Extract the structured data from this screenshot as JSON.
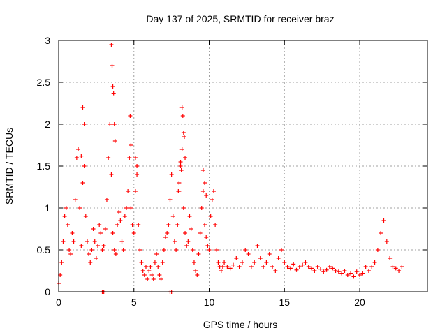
{
  "chart_data": {
    "type": "scatter",
    "title": "Day 137 of 2025, SRMTID for receiver braz",
    "xlabel": "GPS time / hours",
    "ylabel": "SRMTID / TECUs",
    "xlim": [
      0,
      24.5
    ],
    "ylim": [
      0,
      3
    ],
    "xticks": [
      0,
      5,
      10,
      15,
      20
    ],
    "xtick_labels": [
      "0",
      "5",
      "10",
      "15",
      "20"
    ],
    "yticks": [
      0,
      0.5,
      1,
      1.5,
      2,
      2.5,
      3
    ],
    "ytick_labels": [
      "0",
      "0.5",
      "1",
      "1.5",
      "2",
      "2.5",
      "3"
    ],
    "grid": true,
    "marker": "plus",
    "color": "#ff0000",
    "series": [
      {
        "name": "SRMTID",
        "x": [
          0.0,
          0.1,
          0.2,
          0.3,
          0.4,
          0.5,
          0.6,
          0.7,
          0.8,
          0.9,
          1.0,
          1.1,
          1.2,
          1.3,
          1.4,
          1.5,
          1.6,
          1.7,
          1.8,
          1.9,
          2.0,
          2.1,
          2.2,
          2.3,
          2.4,
          2.5,
          2.6,
          2.7,
          2.8,
          2.9,
          3.0,
          3.1,
          3.2,
          3.3,
          3.4,
          3.5,
          3.6,
          3.7,
          3.8,
          3.9,
          4.0,
          4.1,
          4.2,
          4.3,
          4.4,
          4.5,
          4.6,
          4.7,
          4.8,
          4.9,
          5.0,
          5.1,
          5.2,
          5.3,
          5.4,
          5.5,
          5.6,
          5.7,
          5.8,
          5.9,
          6.0,
          6.1,
          6.2,
          6.3,
          6.4,
          6.5,
          6.6,
          6.7,
          6.8,
          6.9,
          7.0,
          7.1,
          7.2,
          7.3,
          7.4,
          7.5,
          7.6,
          7.7,
          7.8,
          7.9,
          8.0,
          8.1,
          8.2,
          8.3,
          8.4,
          8.5,
          8.6,
          8.7,
          8.8,
          8.9,
          9.0,
          9.1,
          9.2,
          9.3,
          9.4,
          9.5,
          9.6,
          9.7,
          9.8,
          9.9,
          10.0,
          10.1,
          10.2,
          10.3,
          10.4,
          10.5,
          10.6,
          10.7,
          10.8,
          10.9,
          11.0,
          11.2,
          11.4,
          11.6,
          11.8,
          12.0,
          12.2,
          12.4,
          12.6,
          12.8,
          13.0,
          13.2,
          13.4,
          13.6,
          13.8,
          14.0,
          14.2,
          14.4,
          14.6,
          14.8,
          15.0,
          15.2,
          15.4,
          15.6,
          15.8,
          16.0,
          16.2,
          16.4,
          16.6,
          16.8,
          17.0,
          17.2,
          17.4,
          17.6,
          17.8,
          18.0,
          18.2,
          18.4,
          18.6,
          18.8,
          19.0,
          19.2,
          19.4,
          19.6,
          19.8,
          20.0,
          20.2,
          20.4,
          20.6,
          20.8,
          21.0,
          21.2,
          21.4,
          21.6,
          21.8,
          22.0,
          22.2,
          22.4,
          22.6,
          22.8,
          1.5,
          1.6,
          1.7,
          3.5,
          3.55,
          3.6,
          3.65,
          3.7,
          3.75,
          4.75,
          4.8,
          5.1,
          5.2,
          8.2,
          8.25,
          8.3,
          8.35,
          8.4,
          8.1,
          8.15,
          8.0,
          7.95,
          9.6,
          9.7,
          9.8,
          2.9,
          3.0,
          7.4,
          7.5
        ],
        "y": [
          0.1,
          0.2,
          0.35,
          0.6,
          0.9,
          1.0,
          0.8,
          0.5,
          0.45,
          0.7,
          0.6,
          1.1,
          1.6,
          1.7,
          1.0,
          0.55,
          1.3,
          1.5,
          0.9,
          0.6,
          0.45,
          0.35,
          0.5,
          0.75,
          0.6,
          0.4,
          0.55,
          0.8,
          0.7,
          0.5,
          0.55,
          0.75,
          1.1,
          1.6,
          2.0,
          1.4,
          0.7,
          0.5,
          0.45,
          0.8,
          0.95,
          0.85,
          0.6,
          0.5,
          0.9,
          1.0,
          1.2,
          1.6,
          1.0,
          0.8,
          0.7,
          1.2,
          1.5,
          0.8,
          0.5,
          0.35,
          0.25,
          0.2,
          0.3,
          0.15,
          0.25,
          0.3,
          0.2,
          0.15,
          0.35,
          0.45,
          0.3,
          0.2,
          0.15,
          0.35,
          0.5,
          0.65,
          0.7,
          0.8,
          1.1,
          1.4,
          0.9,
          0.6,
          0.5,
          0.8,
          1.2,
          1.5,
          1.7,
          1.0,
          0.7,
          0.55,
          0.6,
          0.9,
          0.75,
          0.5,
          0.35,
          0.25,
          0.2,
          0.45,
          0.7,
          1.0,
          1.2,
          0.8,
          0.65,
          0.55,
          0.5,
          0.9,
          1.1,
          1.2,
          0.8,
          0.5,
          0.35,
          0.3,
          0.25,
          0.3,
          0.35,
          0.3,
          0.28,
          0.32,
          0.4,
          0.3,
          0.35,
          0.5,
          0.45,
          0.3,
          0.35,
          0.55,
          0.4,
          0.3,
          0.35,
          0.45,
          0.3,
          0.25,
          0.4,
          0.5,
          0.35,
          0.3,
          0.28,
          0.33,
          0.26,
          0.3,
          0.32,
          0.35,
          0.3,
          0.28,
          0.25,
          0.3,
          0.27,
          0.24,
          0.26,
          0.3,
          0.28,
          0.25,
          0.24,
          0.22,
          0.25,
          0.2,
          0.22,
          0.18,
          0.24,
          0.2,
          0.22,
          0.3,
          0.25,
          0.3,
          0.35,
          0.5,
          0.7,
          0.85,
          0.6,
          0.4,
          0.3,
          0.28,
          0.25,
          0.3,
          1.62,
          2.2,
          2.0,
          2.95,
          2.7,
          2.45,
          2.37,
          2.0,
          1.8,
          2.1,
          1.75,
          1.6,
          1.4,
          2.2,
          2.1,
          1.9,
          1.85,
          1.6,
          1.55,
          1.45,
          1.3,
          1.2,
          1.45,
          1.3,
          1.15,
          0.0,
          0.0,
          0.0,
          0.0
        ]
      }
    ]
  }
}
